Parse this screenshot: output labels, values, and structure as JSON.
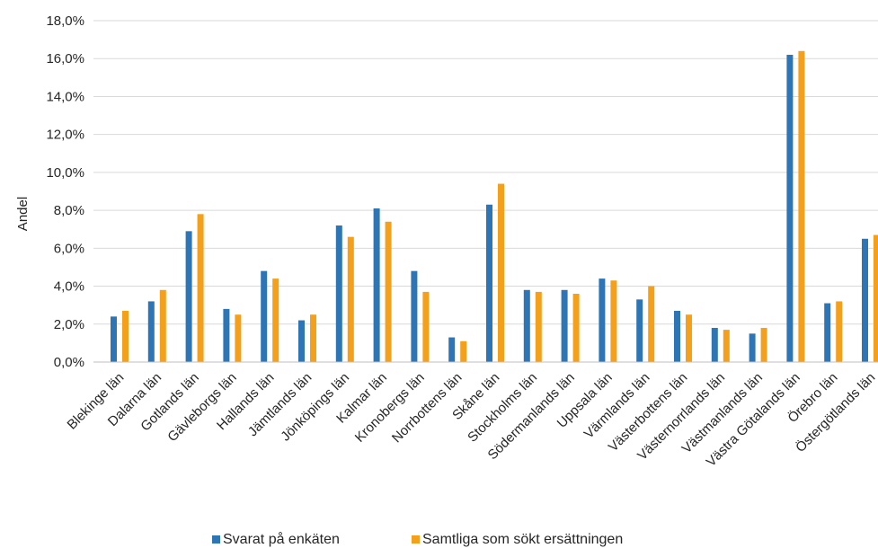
{
  "chart_data": {
    "type": "bar",
    "ylabel": "Andel",
    "ylim": [
      0,
      18
    ],
    "ystep": 2,
    "y_tick_labels": [
      "0,0%",
      "2,0%",
      "4,0%",
      "6,0%",
      "8,0%",
      "10,0%",
      "12,0%",
      "14,0%",
      "16,0%",
      "18,0%"
    ],
    "grid": true,
    "legend_position": "bottom",
    "categories": [
      "Blekinge län",
      "Dalarna län",
      "Gotlands län",
      "Gävleborgs län",
      "Hallands län",
      "Jämtlands län",
      "Jönköpings län",
      "Kalmar län",
      "Kronobergs län",
      "Norrbottens län",
      "Skåne län",
      "Stockholms län",
      "Södermanlands län",
      "Uppsala län",
      "Värmlands län",
      "Västerbottens län",
      "Västernorrlands län",
      "Västmanlands län",
      "Västra Götalands län",
      "Örebro län",
      "Östergötlands län"
    ],
    "series": [
      {
        "name": "Svarat på enkäten",
        "color": "#2E75B6",
        "values": [
          2.4,
          3.2,
          6.9,
          2.8,
          4.8,
          2.2,
          7.2,
          8.1,
          4.8,
          1.3,
          8.3,
          3.8,
          3.8,
          4.4,
          3.3,
          2.7,
          1.8,
          1.5,
          16.2,
          3.1,
          6.5
        ]
      },
      {
        "name": "Samtliga som sökt ersättningen",
        "color": "#F5A01A",
        "values": [
          2.7,
          3.8,
          7.8,
          2.5,
          4.4,
          2.5,
          6.6,
          7.4,
          3.7,
          1.1,
          9.4,
          3.7,
          3.6,
          4.3,
          4.0,
          2.5,
          1.7,
          1.8,
          16.4,
          3.2,
          6.7
        ]
      }
    ]
  }
}
